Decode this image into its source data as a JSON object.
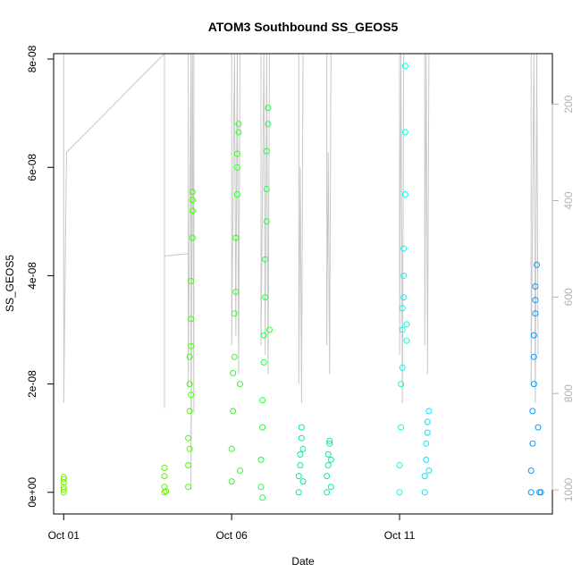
{
  "chart_data": {
    "type": "scatter",
    "title": "ATOM3 Southbound SS_GEOS5",
    "xlabel": "Date",
    "ylabel": "SS_GEOS5",
    "xlim": [
      "2017-09-30T16:48",
      "2017-10-15T13:12"
    ],
    "ylim": [
      -4e-09,
      8.1e-08
    ],
    "x_ticks": [
      {
        "value": "2017-10-01",
        "label": "Oct 01"
      },
      {
        "value": "2017-10-06",
        "label": "Oct 06"
      },
      {
        "value": "2017-10-11",
        "label": "Oct 11"
      }
    ],
    "y_ticks": [
      {
        "value": 0,
        "label": "0e+00"
      },
      {
        "value": 2e-08,
        "label": "2e-08"
      },
      {
        "value": 4e-08,
        "label": "4e-08"
      },
      {
        "value": 6e-08,
        "label": "6e-08"
      },
      {
        "value": 8e-08,
        "label": "8e-08"
      }
    ],
    "secondary_axis": {
      "side": "right",
      "reversed": true,
      "range": [
        95,
        1050
      ],
      "ticks": [
        200,
        400,
        600,
        800,
        1000
      ],
      "color": "#b3b3b3"
    },
    "grid": false,
    "point_style": "open-circle",
    "line_color": "#c8c8c8",
    "series": [
      {
        "color": "#7cf000",
        "points": [
          [
            "2017-10-01T00:00",
            0.0
          ],
          [
            "2017-10-01T00:00",
            5e-10
          ],
          [
            "2017-10-01T00:00",
            1e-09
          ],
          [
            "2017-10-01T00:00",
            1.8e-09
          ],
          [
            "2017-10-01T00:00",
            2.4e-09
          ],
          [
            "2017-10-01T00:00",
            2.8e-09
          ]
        ]
      },
      {
        "color": "#60f500",
        "points": [
          [
            "2017-10-04T00:00",
            0.0
          ],
          [
            "2017-10-04T00:00",
            1e-09
          ],
          [
            "2017-10-04T00:00",
            3e-09
          ],
          [
            "2017-10-04T00:00",
            4.5e-09
          ],
          [
            "2017-10-04T01:00",
            2e-10
          ]
        ]
      },
      {
        "color": "#40ff00",
        "points": [
          [
            "2017-10-04T17:00",
            1e-09
          ],
          [
            "2017-10-04T17:00",
            5e-09
          ],
          [
            "2017-10-04T17:00",
            1e-08
          ],
          [
            "2017-10-04T18:00",
            1.5e-08
          ],
          [
            "2017-10-04T18:00",
            2e-08
          ],
          [
            "2017-10-04T18:00",
            2.5e-08
          ],
          [
            "2017-10-04T19:00",
            2.7e-08
          ],
          [
            "2017-10-04T19:00",
            3.2e-08
          ],
          [
            "2017-10-04T19:00",
            3.9e-08
          ],
          [
            "2017-10-04T20:00",
            4.7e-08
          ],
          [
            "2017-10-04T20:00",
            5.2e-08
          ],
          [
            "2017-10-04T20:00",
            5.4e-08
          ],
          [
            "2017-10-04T20:00",
            5.55e-08
          ],
          [
            "2017-10-04T19:00",
            1.8e-08
          ],
          [
            "2017-10-04T18:00",
            8e-09
          ]
        ]
      },
      {
        "color": "#30ff20",
        "points": [
          [
            "2017-10-06T00:00",
            2e-09
          ],
          [
            "2017-10-06T00:00",
            8e-09
          ],
          [
            "2017-10-06T01:00",
            1.5e-08
          ],
          [
            "2017-10-06T01:00",
            2.2e-08
          ],
          [
            "2017-10-06T02:00",
            2.5e-08
          ],
          [
            "2017-10-06T02:00",
            3.3e-08
          ],
          [
            "2017-10-06T03:00",
            3.7e-08
          ],
          [
            "2017-10-06T03:00",
            4.7e-08
          ],
          [
            "2017-10-06T04:00",
            5.5e-08
          ],
          [
            "2017-10-06T04:00",
            6e-08
          ],
          [
            "2017-10-06T04:00",
            6.25e-08
          ],
          [
            "2017-10-06T05:00",
            6.65e-08
          ],
          [
            "2017-10-06T05:00",
            6.8e-08
          ],
          [
            "2017-10-06T06:00",
            2e-08
          ],
          [
            "2017-10-06T06:00",
            4e-09
          ]
        ]
      },
      {
        "color": "#20ff40",
        "points": [
          [
            "2017-10-06T21:00",
            1e-09
          ],
          [
            "2017-10-06T21:00",
            6e-09
          ],
          [
            "2017-10-06T22:00",
            1.2e-08
          ],
          [
            "2017-10-06T22:00",
            1.7e-08
          ],
          [
            "2017-10-06T23:00",
            2.4e-08
          ],
          [
            "2017-10-06T23:00",
            2.9e-08
          ],
          [
            "2017-10-07T00:00",
            3.6e-08
          ],
          [
            "2017-10-07T00:00",
            4.3e-08
          ],
          [
            "2017-10-07T01:00",
            5e-08
          ],
          [
            "2017-10-07T01:00",
            5.6e-08
          ],
          [
            "2017-10-07T01:00",
            6.3e-08
          ],
          [
            "2017-10-07T02:00",
            6.8e-08
          ],
          [
            "2017-10-07T02:00",
            7.1e-08
          ],
          [
            "2017-10-07T03:00",
            3e-08
          ],
          [
            "2017-10-06T22:00",
            -1e-09
          ]
        ]
      },
      {
        "color": "#00f08a",
        "points": [
          [
            "2017-10-08T00:00",
            0.0
          ],
          [
            "2017-10-08T00:00",
            3e-09
          ],
          [
            "2017-10-08T01:00",
            5e-09
          ],
          [
            "2017-10-08T01:00",
            7e-09
          ],
          [
            "2017-10-08T02:00",
            1e-08
          ],
          [
            "2017-10-08T02:00",
            1.2e-08
          ],
          [
            "2017-10-08T03:00",
            8e-09
          ],
          [
            "2017-10-08T03:00",
            2e-09
          ]
        ]
      },
      {
        "color": "#00f0a0",
        "points": [
          [
            "2017-10-08T20:00",
            0.0
          ],
          [
            "2017-10-08T20:00",
            3e-09
          ],
          [
            "2017-10-08T21:00",
            5e-09
          ],
          [
            "2017-10-08T21:00",
            7e-09
          ],
          [
            "2017-10-08T22:00",
            9e-09
          ],
          [
            "2017-10-08T22:00",
            9.5e-09
          ],
          [
            "2017-10-08T23:00",
            6e-09
          ],
          [
            "2017-10-08T23:00",
            1e-09
          ]
        ]
      },
      {
        "color": "#00ffe8",
        "points": [
          [
            "2017-10-11T00:00",
            0.0
          ],
          [
            "2017-10-11T00:00",
            5e-09
          ],
          [
            "2017-10-11T01:00",
            1.2e-08
          ],
          [
            "2017-10-11T01:00",
            2e-08
          ],
          [
            "2017-10-11T02:00",
            2.3e-08
          ],
          [
            "2017-10-11T02:00",
            3e-08
          ],
          [
            "2017-10-11T02:00",
            3.4e-08
          ],
          [
            "2017-10-11T03:00",
            3.6e-08
          ],
          [
            "2017-10-11T03:00",
            4e-08
          ],
          [
            "2017-10-11T03:00",
            4.5e-08
          ],
          [
            "2017-10-11T04:00",
            5.5e-08
          ],
          [
            "2017-10-11T04:00",
            6.65e-08
          ],
          [
            "2017-10-11T04:00",
            7.87e-08
          ],
          [
            "2017-10-11T05:00",
            3.1e-08
          ],
          [
            "2017-10-11T05:00",
            2.8e-08
          ]
        ]
      },
      {
        "color": "#00e8ff",
        "points": [
          [
            "2017-10-11T18:00",
            0.0
          ],
          [
            "2017-10-11T18:00",
            3e-09
          ],
          [
            "2017-10-11T19:00",
            6e-09
          ],
          [
            "2017-10-11T19:00",
            9e-09
          ],
          [
            "2017-10-11T20:00",
            1.1e-08
          ],
          [
            "2017-10-11T20:00",
            1.3e-08
          ],
          [
            "2017-10-11T21:00",
            1.5e-08
          ],
          [
            "2017-10-11T21:00",
            4e-09
          ]
        ]
      },
      {
        "color": "#009cff",
        "points": [
          [
            "2017-10-14T22:00",
            0.0
          ],
          [
            "2017-10-14T22:00",
            4e-09
          ],
          [
            "2017-10-14T23:00",
            9e-09
          ],
          [
            "2017-10-14T23:00",
            1.5e-08
          ],
          [
            "2017-10-15T00:00",
            2e-08
          ],
          [
            "2017-10-15T00:00",
            2.5e-08
          ],
          [
            "2017-10-15T00:00",
            2.9e-08
          ],
          [
            "2017-10-15T01:00",
            3.3e-08
          ],
          [
            "2017-10-15T01:00",
            3.55e-08
          ],
          [
            "2017-10-15T01:00",
            3.8e-08
          ],
          [
            "2017-10-15T02:00",
            4.2e-08
          ],
          [
            "2017-10-15T03:00",
            1.2e-08
          ],
          [
            "2017-10-15T04:00",
            0.0
          ],
          [
            "2017-10-15T05:00",
            0.0
          ]
        ]
      }
    ],
    "altitude_track": [
      [
        "2017-10-01T00:00",
        95
      ],
      [
        "2017-10-01T00:00",
        400
      ],
      [
        "2017-10-01T00:00",
        820
      ],
      [
        "2017-10-01T02:00",
        300
      ],
      [
        "2017-10-04T00:00",
        95
      ],
      [
        "2017-10-04T00:00",
        520
      ],
      [
        "2017-10-04T00:00",
        830
      ],
      [
        "2017-10-04T00:00",
        515
      ],
      [
        "2017-10-04T17:00",
        510
      ],
      [
        "2017-10-04T17:00",
        95
      ],
      [
        "2017-10-04T17:00",
        790
      ],
      [
        "2017-10-04T19:00",
        95
      ],
      [
        "2017-10-04T19:00",
        1000
      ],
      [
        "2017-10-04T20:00",
        95
      ],
      [
        "2017-10-04T21:00",
        840
      ],
      [
        "2017-10-04T21:00",
        95
      ],
      [
        "2017-10-06T00:00",
        95
      ],
      [
        "2017-10-06T00:00",
        700
      ],
      [
        "2017-10-06T02:00",
        95
      ],
      [
        "2017-10-06T03:00",
        680
      ],
      [
        "2017-10-06T04:00",
        95
      ],
      [
        "2017-10-06T05:00",
        760
      ],
      [
        "2017-10-06T06:00",
        95
      ],
      [
        "2017-10-06T21:00",
        95
      ],
      [
        "2017-10-06T21:00",
        700
      ],
      [
        "2017-10-06T23:00",
        95
      ],
      [
        "2017-10-07T00:00",
        720
      ],
      [
        "2017-10-07T01:00",
        95
      ],
      [
        "2017-10-07T02:00",
        760
      ],
      [
        "2017-10-07T03:00",
        95
      ],
      [
        "2017-10-08T00:00",
        95
      ],
      [
        "2017-10-08T00:00",
        780
      ],
      [
        "2017-10-08T01:00",
        330
      ],
      [
        "2017-10-08T02:00",
        820
      ],
      [
        "2017-10-08T03:00",
        95
      ],
      [
        "2017-10-08T20:00",
        95
      ],
      [
        "2017-10-08T20:00",
        700
      ],
      [
        "2017-10-08T21:00",
        300
      ],
      [
        "2017-10-08T22:00",
        760
      ],
      [
        "2017-10-08T23:00",
        95
      ],
      [
        "2017-10-11T00:00",
        95
      ],
      [
        "2017-10-11T00:00",
        720
      ],
      [
        "2017-10-11T01:00",
        95
      ],
      [
        "2017-10-11T02:00",
        820
      ],
      [
        "2017-10-11T03:00",
        95
      ],
      [
        "2017-10-11T18:00",
        95
      ],
      [
        "2017-10-11T18:00",
        700
      ],
      [
        "2017-10-11T19:00",
        95
      ],
      [
        "2017-10-11T20:00",
        760
      ],
      [
        "2017-10-11T21:00",
        95
      ],
      [
        "2017-10-14T22:00",
        95
      ],
      [
        "2017-10-14T22:00",
        780
      ],
      [
        "2017-10-15T00:00",
        95
      ],
      [
        "2017-10-15T01:00",
        820
      ],
      [
        "2017-10-15T02:00",
        95
      ],
      [
        "2017-10-15T03:00",
        720
      ]
    ]
  }
}
